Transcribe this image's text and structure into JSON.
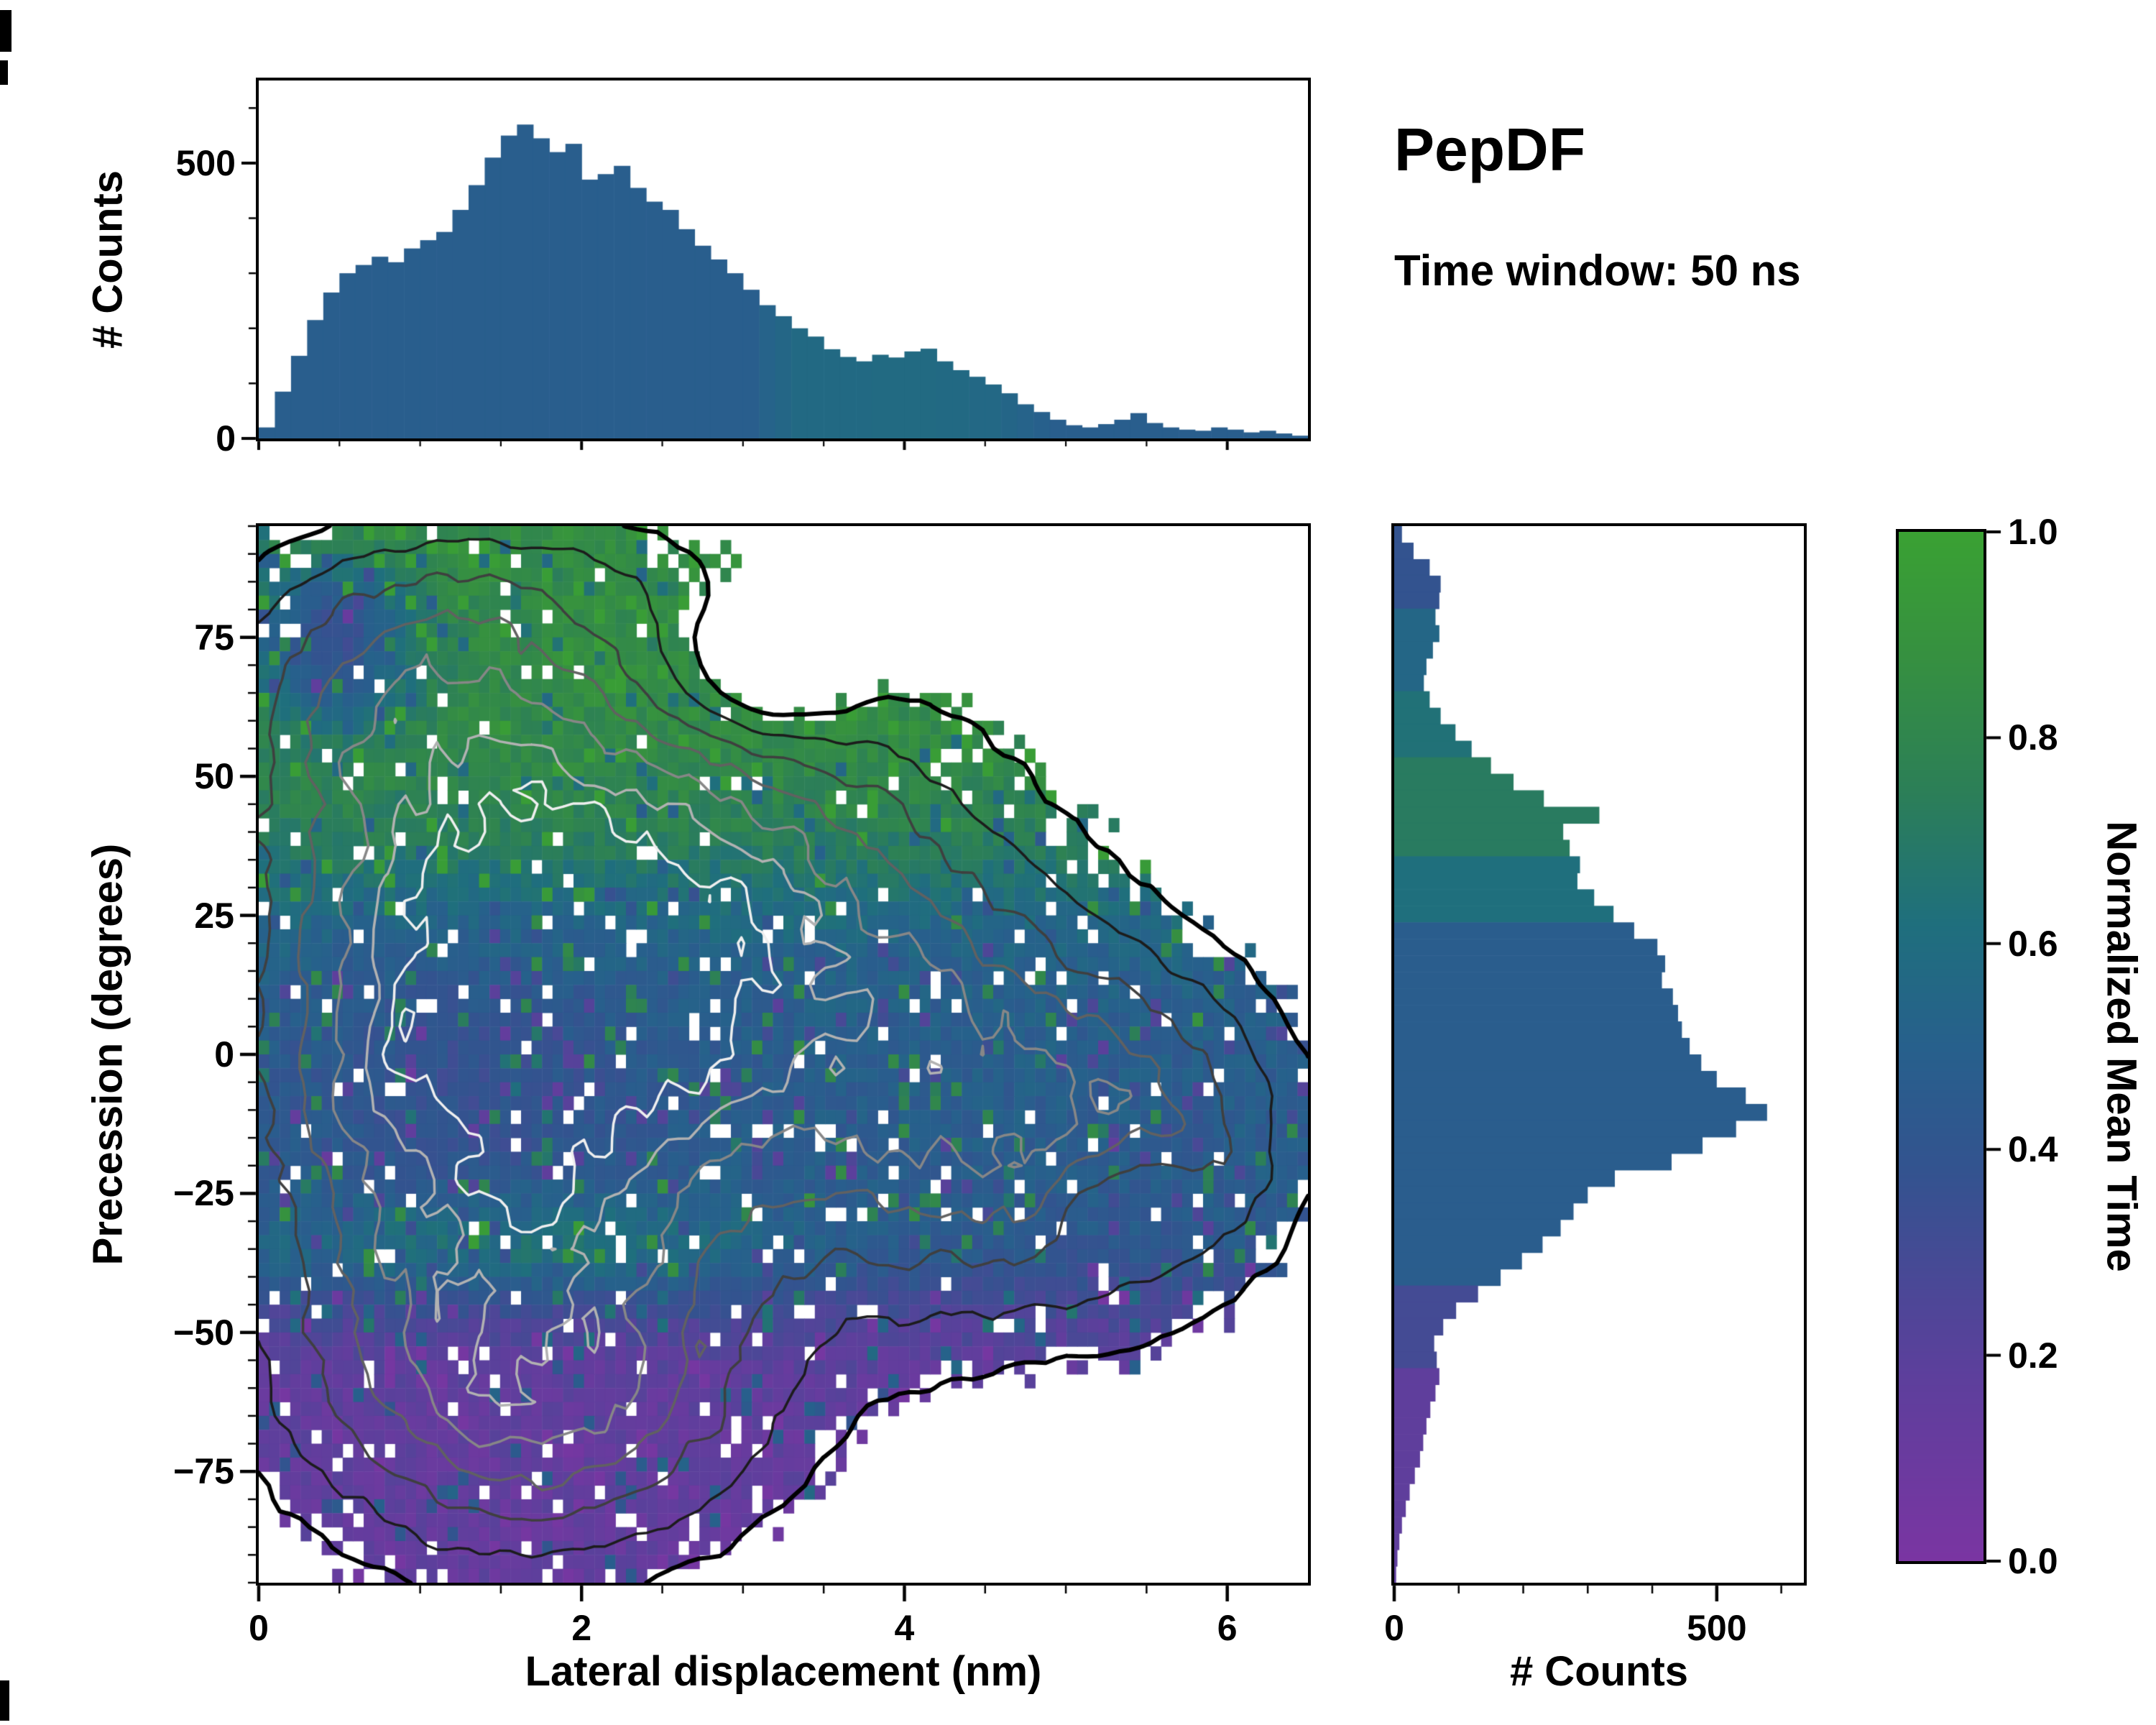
{
  "figure": {
    "title": "PepDF",
    "subtitle": "Time window: 50 ns",
    "background": "#ffffff"
  },
  "colormap": {
    "label": "Normalized Mean Time",
    "stops": [
      [
        0.0,
        "#7a35a2"
      ],
      [
        0.18,
        "#5d3f9c"
      ],
      [
        0.38,
        "#33538f"
      ],
      [
        0.5,
        "#27608c"
      ],
      [
        0.62,
        "#1f6f7d"
      ],
      [
        0.75,
        "#2c7f57"
      ],
      [
        0.88,
        "#369040"
      ],
      [
        1.0,
        "#3aa133"
      ]
    ],
    "ticks": [
      0.0,
      0.2,
      0.4,
      0.6,
      0.8,
      1.0
    ],
    "tick_labels": [
      "0.0",
      "0.2",
      "0.4",
      "0.6",
      "0.8",
      "1.0"
    ],
    "range": [
      0,
      1
    ]
  },
  "chart_data": [
    {
      "id": "top_histogram",
      "type": "bar",
      "orientation": "vertical",
      "xlabel": "",
      "ylabel": "# Counts",
      "xlim": [
        0,
        6.5
      ],
      "ylim": [
        0,
        650
      ],
      "yticks": [
        0,
        500
      ],
      "ytick_labels": [
        "0",
        "500"
      ],
      "x_start": 0,
      "bin_size": 0.1,
      "counts": [
        20,
        85,
        150,
        215,
        265,
        300,
        315,
        330,
        320,
        345,
        360,
        375,
        415,
        460,
        510,
        550,
        570,
        545,
        520,
        535,
        470,
        480,
        495,
        455,
        430,
        415,
        380,
        350,
        325,
        300,
        270,
        242,
        222,
        200,
        185,
        162,
        148,
        140,
        152,
        147,
        158,
        163,
        140,
        124,
        112,
        98,
        82,
        62,
        48,
        34,
        24,
        20,
        26,
        34,
        46,
        28,
        20,
        16,
        14,
        20,
        16,
        11,
        14,
        9,
        5
      ],
      "color_values": [
        0.48,
        0.48,
        0.48,
        0.48,
        0.48,
        0.48,
        0.48,
        0.48,
        0.48,
        0.48,
        0.48,
        0.48,
        0.48,
        0.48,
        0.48,
        0.48,
        0.48,
        0.48,
        0.48,
        0.48,
        0.48,
        0.48,
        0.48,
        0.48,
        0.48,
        0.48,
        0.48,
        0.48,
        0.48,
        0.48,
        0.48,
        0.52,
        0.55,
        0.57,
        0.57,
        0.57,
        0.57,
        0.57,
        0.58,
        0.58,
        0.58,
        0.58,
        0.57,
        0.57,
        0.56,
        0.56,
        0.54,
        0.52,
        0.5,
        0.48,
        0.48,
        0.48,
        0.48,
        0.48,
        0.48,
        0.48,
        0.48,
        0.48,
        0.48,
        0.48,
        0.48,
        0.48,
        0.48,
        0.48,
        0.48
      ]
    },
    {
      "id": "joint_heatmap",
      "type": "heatmap",
      "xlabel": "Lateral displacement (nm)",
      "ylabel": "Precession (degrees)",
      "value_label": "Normalized Mean Time",
      "xlim": [
        0,
        6.5
      ],
      "ylim": [
        -95,
        95
      ],
      "xticks": [
        0,
        2,
        4,
        6
      ],
      "xtick_labels": [
        "0",
        "2",
        "4",
        "6"
      ],
      "yticks": [
        75,
        50,
        25,
        0,
        -25,
        -50,
        -75
      ],
      "ytick_labels": [
        "75",
        "50",
        "25",
        "0",
        "−25",
        "−50",
        "−75"
      ],
      "grid": {
        "nx": 100,
        "ny": 76
      },
      "seed": 42,
      "mask_threshold": 0.14,
      "edge_jitter": 0.045,
      "hole_fraction": 0.055,
      "density_blobs": [
        [
          1.5,
          -2,
          1.05,
          34,
          1.0
        ],
        [
          2.1,
          42,
          1.35,
          26,
          0.38
        ],
        [
          1.8,
          85,
          0.9,
          10,
          0.12
        ],
        [
          0.9,
          65,
          0.8,
          18,
          0.4
        ],
        [
          4.5,
          -12,
          1.0,
          25,
          0.6
        ],
        [
          5.6,
          -15,
          0.6,
          18,
          0.28
        ],
        [
          1.7,
          -62,
          1.0,
          20,
          0.6
        ],
        [
          3.2,
          20,
          1.0,
          25,
          0.4
        ],
        [
          3.1,
          68,
          0.45,
          10,
          -0.3
        ],
        [
          5.35,
          -24,
          0.32,
          8,
          -0.28
        ]
      ],
      "contour_levels": [
        0.14,
        0.26,
        0.4,
        0.54,
        0.68,
        0.82,
        0.95
      ],
      "contour_colors": [
        "#000000",
        "#1c1c1c",
        "#3f3f3f",
        "#616161",
        "#878787",
        "#b2b2b2",
        "#efefef"
      ],
      "contour_widths": [
        6,
        3.5,
        3.5,
        3.5,
        3.5,
        3.5,
        3.5
      ],
      "value_model": {
        "base": 0.47,
        "green_top": {
          "center": 32,
          "scale": 8,
          "amp": 0.38
        },
        "purple_bottom": {
          "center": -44,
          "scale": 6,
          "amp": 0.33
        },
        "gauss_terms": [
          [
            0.45,
            74,
            0.38,
            11,
            -0.5
          ],
          [
            1.6,
            -35,
            1.25,
            6.5,
            0.24
          ],
          [
            1.3,
            -5,
            0.85,
            20,
            -0.1
          ]
        ],
        "noise_amp": 0.07,
        "salt_fraction": 0.12,
        "salt_amp": 0.26
      }
    },
    {
      "id": "right_histogram",
      "type": "bar",
      "orientation": "horizontal",
      "xlabel": "# Counts",
      "ylabel": "",
      "xlim": [
        0,
        635
      ],
      "ylim": [
        -95,
        95
      ],
      "xticks": [
        0,
        500
      ],
      "xtick_labels": [
        "0",
        "500"
      ],
      "y_start": 95,
      "bin_size": 2.96875,
      "counts": [
        12,
        30,
        55,
        72,
        70,
        64,
        70,
        60,
        50,
        46,
        55,
        72,
        95,
        120,
        150,
        185,
        232,
        318,
        262,
        272,
        288,
        284,
        310,
        340,
        372,
        408,
        420,
        415,
        432,
        440,
        446,
        458,
        476,
        500,
        545,
        578,
        530,
        478,
        430,
        342,
        300,
        278,
        258,
        230,
        198,
        165,
        130,
        96,
        76,
        62,
        66,
        70,
        64,
        56,
        50,
        45,
        40,
        32,
        24,
        18,
        12,
        8,
        5,
        3
      ],
      "color_values": [
        0.38,
        0.38,
        0.38,
        0.38,
        0.38,
        0.55,
        0.55,
        0.55,
        0.55,
        0.55,
        0.64,
        0.64,
        0.64,
        0.64,
        0.72,
        0.72,
        0.72,
        0.72,
        0.72,
        0.72,
        0.62,
        0.62,
        0.62,
        0.62,
        0.47,
        0.47,
        0.47,
        0.47,
        0.47,
        0.47,
        0.47,
        0.47,
        0.47,
        0.47,
        0.47,
        0.47,
        0.47,
        0.47,
        0.47,
        0.47,
        0.47,
        0.47,
        0.47,
        0.47,
        0.47,
        0.47,
        0.3,
        0.3,
        0.3,
        0.3,
        0.3,
        0.17,
        0.17,
        0.17,
        0.17,
        0.17,
        0.17,
        0.17,
        0.17,
        0.17,
        0.17,
        0.17,
        0.17,
        0.17
      ]
    }
  ]
}
